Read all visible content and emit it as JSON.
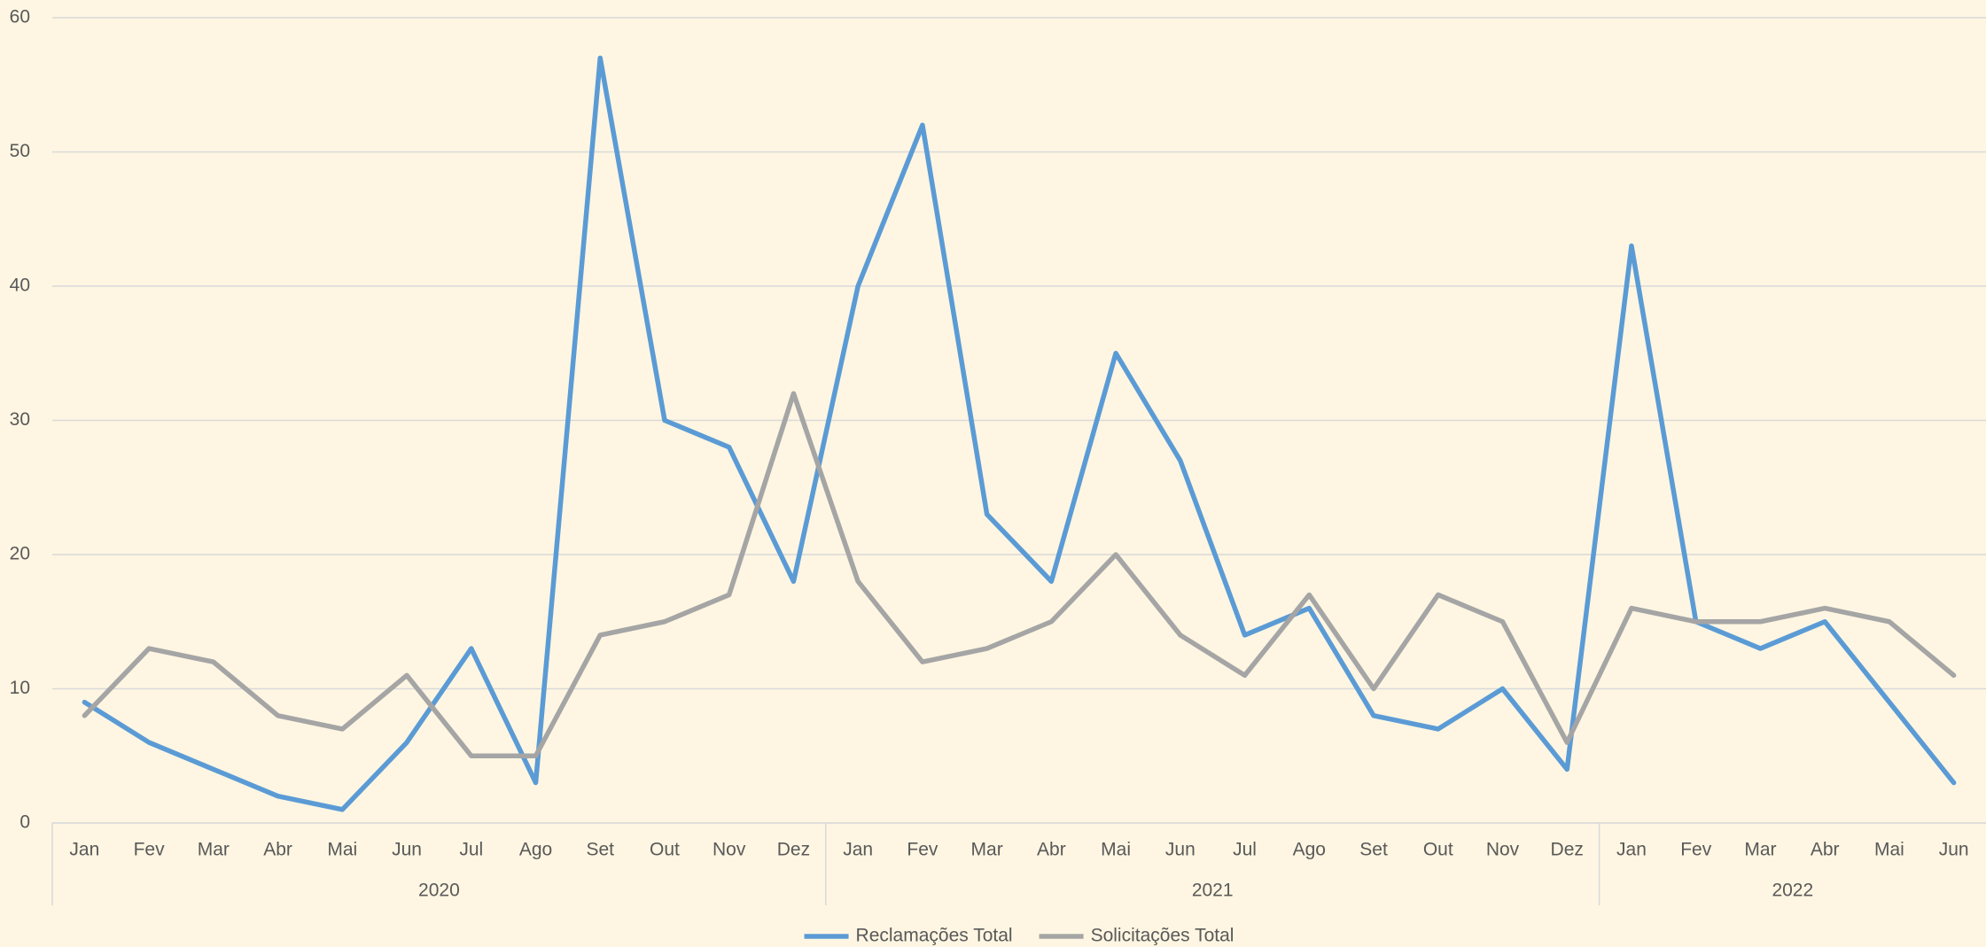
{
  "chart_data": {
    "type": "line",
    "groups": [
      {
        "label": "2020",
        "categories": [
          "Jan",
          "Fev",
          "Mar",
          "Abr",
          "Mai",
          "Jun",
          "Jul",
          "Ago",
          "Set",
          "Out",
          "Nov",
          "Dez"
        ]
      },
      {
        "label": "2021",
        "categories": [
          "Jan",
          "Fev",
          "Mar",
          "Abr",
          "Mai",
          "Jun",
          "Jul",
          "Ago",
          "Set",
          "Out",
          "Nov",
          "Dez"
        ]
      },
      {
        "label": "2022",
        "categories": [
          "Jan",
          "Fev",
          "Mar",
          "Abr",
          "Mai",
          "Jun"
        ]
      }
    ],
    "series": [
      {
        "name": "Reclamações Total",
        "color": "#5b9bd5",
        "values": [
          9,
          6,
          4,
          2,
          1,
          6,
          13,
          3,
          57,
          30,
          28,
          18,
          40,
          52,
          23,
          18,
          35,
          27,
          14,
          16,
          8,
          7,
          10,
          4,
          43,
          15,
          13,
          15,
          9,
          3
        ]
      },
      {
        "name": "Solicitações Total",
        "color": "#a5a5a5",
        "values": [
          8,
          13,
          12,
          8,
          7,
          11,
          5,
          5,
          14,
          15,
          17,
          32,
          18,
          12,
          13,
          15,
          20,
          14,
          11,
          17,
          10,
          17,
          15,
          6,
          16,
          15,
          15,
          16,
          15,
          11
        ]
      }
    ],
    "ylim": [
      0,
      60
    ],
    "yticks": [
      0,
      10,
      20,
      30,
      40,
      50,
      60
    ],
    "grid": true,
    "legend": "bottom"
  }
}
